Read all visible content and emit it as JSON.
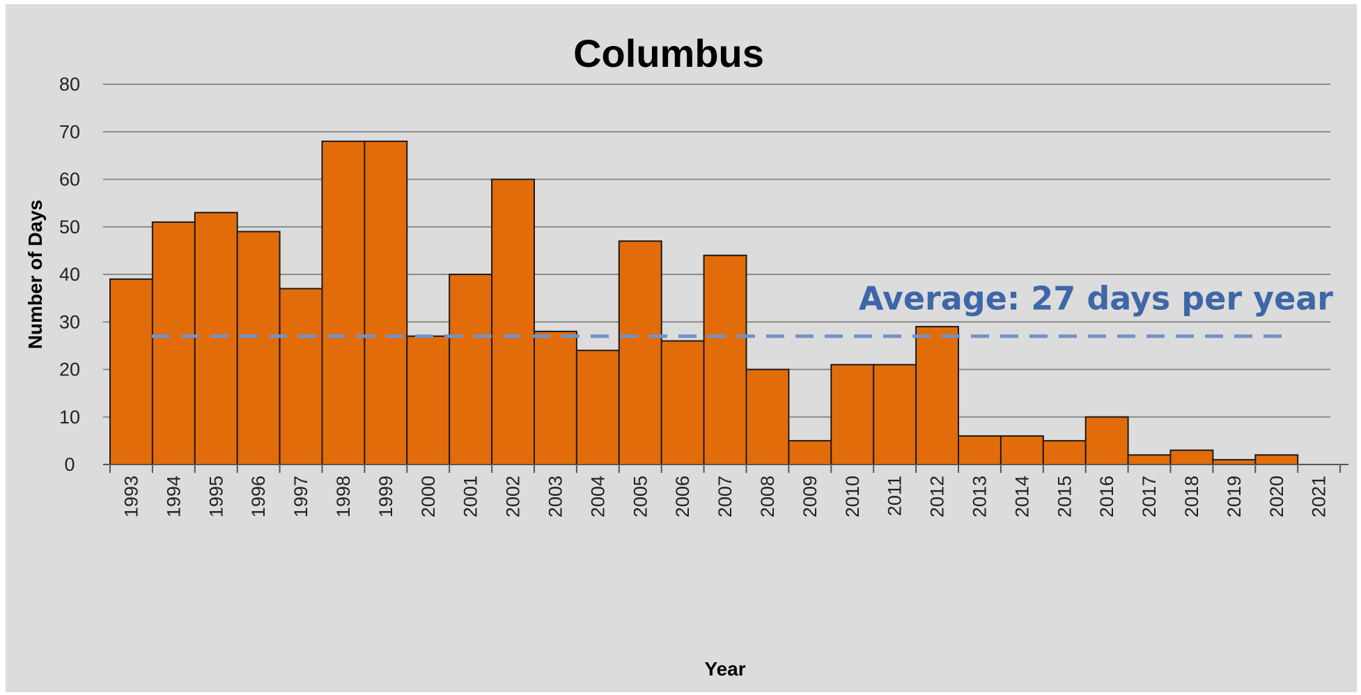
{
  "chart_data": {
    "type": "bar",
    "title": "Columbus",
    "xlabel": "Year",
    "ylabel": "Number of Days",
    "ylim": [
      0,
      80
    ],
    "yticks": [
      0,
      10,
      20,
      30,
      40,
      50,
      60,
      70,
      80
    ],
    "grid": true,
    "categories": [
      "1993",
      "1994",
      "1995",
      "1996",
      "1997",
      "1998",
      "1999",
      "2000",
      "2001",
      "2002",
      "2003",
      "2004",
      "2005",
      "2006",
      "2007",
      "2008",
      "2009",
      "2010",
      "2011",
      "2012",
      "2013",
      "2014",
      "2015",
      "2016",
      "2017",
      "2018",
      "2019",
      "2020",
      "2021"
    ],
    "values": [
      39,
      51,
      53,
      49,
      37,
      68,
      68,
      27,
      40,
      60,
      28,
      24,
      47,
      26,
      44,
      20,
      5,
      21,
      21,
      29,
      6,
      6,
      5,
      10,
      2,
      3,
      1,
      2,
      null
    ],
    "reference_line": {
      "value": 27,
      "label": "Average: 27 days per year",
      "style": "dashed"
    },
    "colors": {
      "bar": "#e36c0a",
      "bar_stroke": "#1a1a1a",
      "average_line": "#6f93c8",
      "average_label": "#3d67a8",
      "background": "#dcdcdc",
      "grid": "#8a8a8a"
    }
  }
}
